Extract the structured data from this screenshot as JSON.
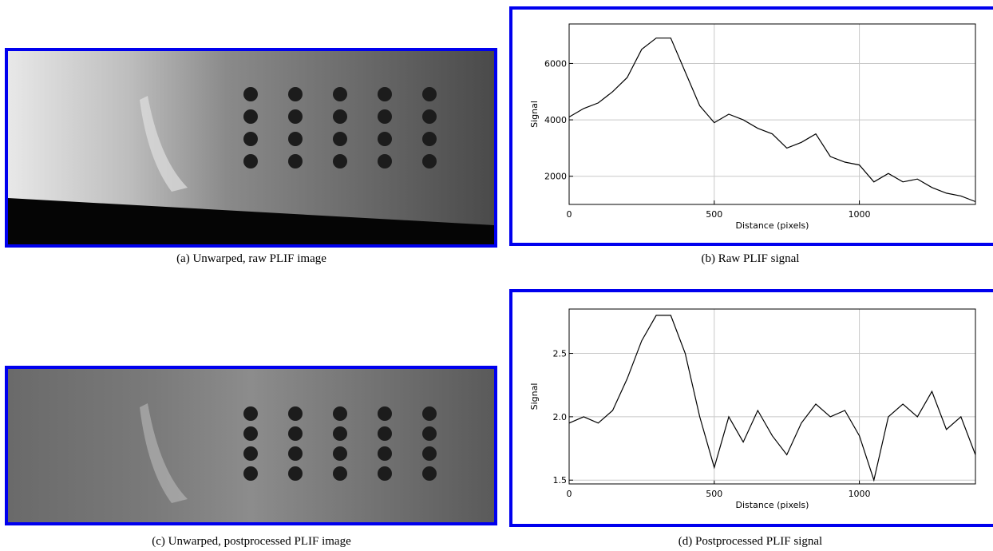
{
  "images": [
    {
      "caption": "(a) Unwarped, raw PLIF image"
    },
    {
      "caption": "(c) Unwarped, postprocessed PLIF image"
    }
  ],
  "chart_data": [
    {
      "type": "line",
      "caption": "(b) Raw PLIF signal",
      "xlabel": "Distance (pixels)",
      "ylabel": "Signal",
      "x": [
        0,
        50,
        100,
        150,
        200,
        250,
        300,
        350,
        400,
        450,
        500,
        550,
        600,
        650,
        700,
        750,
        800,
        850,
        900,
        950,
        1000,
        1050,
        1100,
        1150,
        1200,
        1250,
        1300,
        1350,
        1400
      ],
      "series": [
        {
          "color": "#000000",
          "values": [
            4100,
            4400,
            4600,
            5000,
            5500,
            6500,
            6900,
            6900,
            5700,
            4500,
            3900,
            4200,
            4000,
            3700,
            3500,
            3000,
            3200,
            3500,
            2700,
            2500,
            2400,
            1800,
            2100,
            1800,
            1900,
            1600,
            1400,
            1300,
            1100
          ]
        }
      ],
      "xlim": [
        0,
        1400
      ],
      "ylim": [
        1000,
        7400
      ],
      "xticks": [
        0,
        500,
        1000
      ],
      "yticks": [
        2000,
        4000,
        6000
      ],
      "grid": true
    },
    {
      "type": "line",
      "caption": "(d) Postprocessed PLIF signal",
      "xlabel": "Distance (pixels)",
      "ylabel": "Signal",
      "x": [
        0,
        50,
        100,
        150,
        200,
        250,
        300,
        350,
        400,
        450,
        500,
        550,
        600,
        650,
        700,
        750,
        800,
        850,
        900,
        950,
        1000,
        1050,
        1100,
        1150,
        1200,
        1250,
        1300,
        1350,
        1400
      ],
      "series": [
        {
          "color": "#000000",
          "values": [
            1.95,
            2.0,
            1.95,
            2.05,
            2.3,
            2.6,
            2.8,
            2.8,
            2.5,
            2.0,
            1.6,
            2.0,
            1.8,
            2.05,
            1.85,
            1.7,
            1.95,
            2.1,
            2.0,
            2.05,
            1.85,
            1.5,
            2.0,
            2.1,
            2.0,
            2.2,
            1.9,
            2.0,
            1.7
          ]
        }
      ],
      "xlim": [
        0,
        1400
      ],
      "ylim": [
        1.47,
        2.85
      ],
      "xticks": [
        0,
        500,
        1000
      ],
      "yticks": [
        1.5,
        {
          "value": 2,
          "label": "2.0"
        },
        2.5
      ],
      "grid": true
    }
  ]
}
